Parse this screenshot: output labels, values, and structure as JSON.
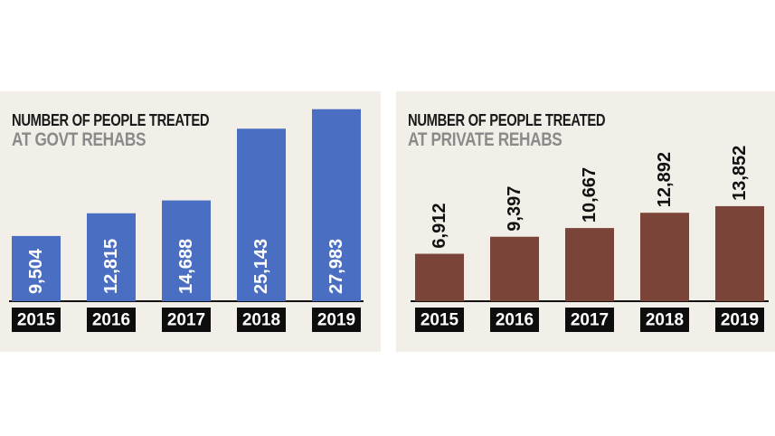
{
  "chart_data": [
    {
      "type": "bar",
      "title": "NUMBER OF PEOPLE TREATED",
      "subtitle": "AT GOVT REHABS",
      "categories": [
        "2015",
        "2016",
        "2017",
        "2018",
        "2019"
      ],
      "values": [
        9504,
        12815,
        14688,
        25143,
        27983
      ],
      "value_labels": [
        "9,504",
        "12,815",
        "14,688",
        "25,143",
        "27,983"
      ],
      "ylim": [
        0,
        29000
      ],
      "bar_color": "#4a6fc2",
      "label_inside_bar": true,
      "grid": false
    },
    {
      "type": "bar",
      "title": "NUMBER OF PEOPLE TREATED",
      "subtitle": "AT PRIVATE REHABS",
      "categories": [
        "2015",
        "2016",
        "2017",
        "2018",
        "2019"
      ],
      "values": [
        6912,
        9397,
        10667,
        12892,
        13852
      ],
      "value_labels": [
        "6,912",
        "9,397",
        "10,667",
        "12,892",
        "13,852"
      ],
      "ylim": [
        0,
        29000
      ],
      "bar_color": "#7a4538",
      "label_inside_bar": false,
      "grid": false
    }
  ]
}
